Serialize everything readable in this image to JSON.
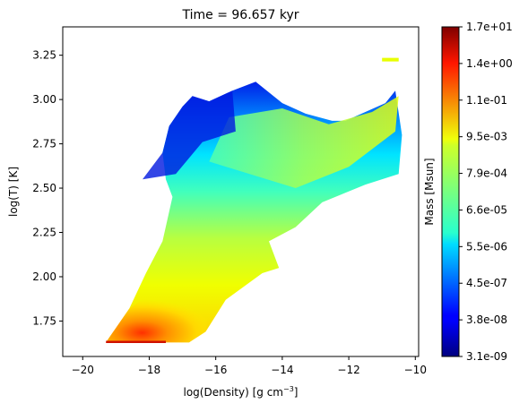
{
  "chart_data": {
    "type": "heatmap",
    "title": "Time = 96.657 kyr",
    "xlabel_main": "log(Density) [g cm",
    "xlabel_sup": "−3",
    "xlabel_close": "]",
    "ylabel": "log(T) [K]",
    "xlim": [
      -20.6,
      -9.9
    ],
    "ylim": [
      1.55,
      3.41
    ],
    "x_ticks": [
      -20,
      -18,
      -16,
      -14,
      -12,
      -10
    ],
    "x_tick_labels": [
      "−20",
      "−18",
      "−16",
      "−14",
      "−12",
      "−10"
    ],
    "y_ticks": [
      1.75,
      2.0,
      2.25,
      2.5,
      2.75,
      3.0,
      3.25
    ],
    "y_tick_labels": [
      "1.75",
      "2.00",
      "2.25",
      "2.50",
      "2.75",
      "3.00",
      "3.25"
    ],
    "colorbar": {
      "label": "Mass [Msun]",
      "colormap": "jet",
      "scale": "log",
      "tick_labels": [
        "3.1e-09",
        "3.8e-08",
        "4.5e-07",
        "5.5e-06",
        "6.6e-05",
        "7.9e-04",
        "9.5e-03",
        "1.1e-01",
        "1.4e+00",
        "1.7e+01"
      ]
    },
    "distribution": {
      "lower_boundary": [
        [
          -19.3,
          1.63
        ],
        [
          -17.8,
          1.63
        ],
        [
          -16.8,
          1.63
        ],
        [
          -16.3,
          1.69
        ],
        [
          -15.7,
          1.87
        ],
        [
          -14.6,
          2.02
        ],
        [
          -14.1,
          2.05
        ],
        [
          -14.4,
          2.2
        ],
        [
          -13.6,
          2.28
        ],
        [
          -12.8,
          2.42
        ],
        [
          -11.5,
          2.52
        ],
        [
          -10.5,
          2.58
        ],
        [
          -10.4,
          2.8
        ],
        [
          -10.6,
          3.05
        ],
        [
          -10.9,
          2.98
        ],
        [
          -11.5,
          2.93
        ],
        [
          -12.1,
          2.88
        ]
      ],
      "upper_boundary": [
        [
          -19.3,
          1.63
        ],
        [
          -18.6,
          1.82
        ],
        [
          -18.1,
          2.02
        ],
        [
          -17.6,
          2.2
        ],
        [
          -17.3,
          2.45
        ],
        [
          -17.5,
          2.55
        ],
        [
          -17.6,
          2.7
        ],
        [
          -17.4,
          2.85
        ],
        [
          -17.0,
          2.96
        ],
        [
          -16.7,
          3.02
        ],
        [
          -16.2,
          2.99
        ],
        [
          -15.5,
          3.05
        ],
        [
          -14.8,
          3.1
        ],
        [
          -14.0,
          2.98
        ],
        [
          -13.3,
          2.92
        ],
        [
          -12.5,
          2.88
        ]
      ],
      "high_mass_region": {
        "x": [
          -19.3,
          -16.2
        ],
        "y": [
          1.63,
          1.9
        ]
      },
      "low_mass_region": {
        "x": [
          -18.2,
          -15.4
        ],
        "y": [
          2.55,
          3.15
        ]
      },
      "isolated_clump": {
        "x": [
          -11.0,
          -10.5
        ],
        "y": [
          3.2,
          3.23
        ]
      }
    }
  }
}
